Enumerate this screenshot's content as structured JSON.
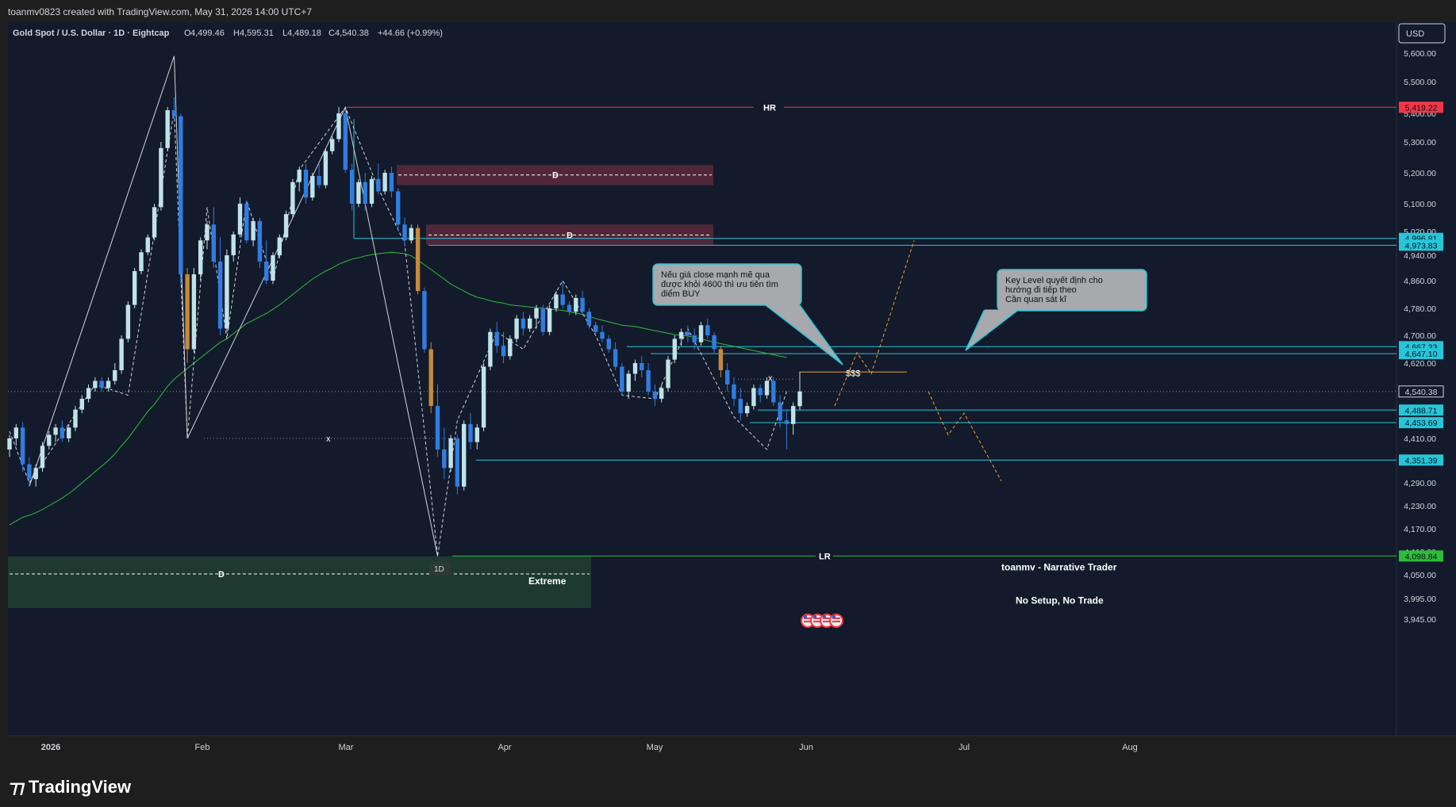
{
  "header": {
    "credit": "toanmv0823 created with TradingView.com, May 31, 2026 14:00 UTC+7"
  },
  "footer": {
    "brand": "TradingView"
  },
  "colors": {
    "bg": "#131a2b",
    "up": "#bfe3e8",
    "down": "#2f7de0",
    "highlight": "#c58a3b",
    "ma": "#2ebd3a",
    "hr": "#f23645",
    "level": "#26c6da",
    "orange": "#f0a030"
  },
  "chart_data": {
    "type": "candlestick",
    "symbol_line": {
      "symbol": "Gold Spot / U.S. Dollar · 1D · Eightcap",
      "o_label": "O",
      "o": "4,499.46",
      "h_label": "H",
      "h": "4,595.31",
      "l_label": "L",
      "l": "4,489.18",
      "c_label": "C",
      "c": "4,540.38",
      "change": "+44.66 (+0.99%)"
    },
    "currency": "USD",
    "ylim": [
      3920,
      5700
    ],
    "x_months": [
      "2026",
      "Feb",
      "Mar",
      "Apr",
      "May",
      "Jun",
      "Jul",
      "Aug"
    ],
    "y_ticks": [
      "5,600.00",
      "5,500.00",
      "5,400.00",
      "5,300.00",
      "5,200.00",
      "5,100.00",
      "5,020.00",
      "4,940.00",
      "4,860.00",
      "4,780.00",
      "4,700.00",
      "4,620.00",
      "4,540.00",
      "4,410.00",
      "4,290.00",
      "4,230.00",
      "4,170.00",
      "4,110.00",
      "4,050.00",
      "3,995.00",
      "3,945.00"
    ],
    "y_tick_values": [
      5600,
      5500,
      5400,
      5300,
      5200,
      5100,
      5020,
      4940,
      4860,
      4780,
      4700,
      4620,
      4540,
      4410,
      4290,
      4230,
      4170,
      4110,
      4050,
      3995,
      3945
    ],
    "ohlc_approx": [
      [
        4380,
        4420,
        4360,
        4410
      ],
      [
        4410,
        4450,
        4390,
        4440
      ],
      [
        4440,
        4455,
        4320,
        4340
      ],
      [
        4340,
        4360,
        4280,
        4300
      ],
      [
        4300,
        4340,
        4280,
        4330
      ],
      [
        4330,
        4400,
        4320,
        4390
      ],
      [
        4390,
        4430,
        4380,
        4420
      ],
      [
        4420,
        4450,
        4400,
        4440
      ],
      [
        4440,
        4460,
        4400,
        4410
      ],
      [
        4410,
        4450,
        4400,
        4440
      ],
      [
        4440,
        4500,
        4430,
        4490
      ],
      [
        4490,
        4530,
        4480,
        4520
      ],
      [
        4520,
        4560,
        4510,
        4550
      ],
      [
        4550,
        4580,
        4540,
        4570
      ],
      [
        4570,
        4580,
        4540,
        4550
      ],
      [
        4550,
        4580,
        4540,
        4570
      ],
      [
        4570,
        4620,
        4560,
        4600
      ],
      [
        4600,
        4700,
        4590,
        4690
      ],
      [
        4690,
        4800,
        4680,
        4790
      ],
      [
        4790,
        4900,
        4780,
        4890
      ],
      [
        4890,
        4960,
        4880,
        4950
      ],
      [
        4950,
        5010,
        4940,
        5000
      ],
      [
        5000,
        5100,
        4990,
        5090
      ],
      [
        5090,
        5300,
        5080,
        5280
      ],
      [
        5280,
        5420,
        5270,
        5410
      ],
      [
        5410,
        5450,
        5380,
        5390
      ],
      [
        5390,
        5400,
        4850,
        4880
      ],
      [
        4880,
        4900,
        4620,
        4660
      ],
      [
        4660,
        4900,
        4650,
        4880
      ],
      [
        4880,
        5000,
        4860,
        4990
      ],
      [
        4990,
        5050,
        4960,
        5040
      ],
      [
        5040,
        5090,
        4900,
        4920
      ],
      [
        4920,
        5000,
        4700,
        4720
      ],
      [
        4720,
        4960,
        4710,
        4940
      ],
      [
        4940,
        5020,
        4920,
        5010
      ],
      [
        5010,
        5120,
        5000,
        5100
      ],
      [
        5100,
        5110,
        4980,
        4990
      ],
      [
        4990,
        5060,
        4970,
        5050
      ],
      [
        5050,
        5060,
        4900,
        4920
      ],
      [
        4920,
        4990,
        4850,
        4860
      ],
      [
        4860,
        4950,
        4850,
        4940
      ],
      [
        4940,
        5010,
        4930,
        5000
      ],
      [
        5000,
        5080,
        4990,
        5070
      ],
      [
        5070,
        5180,
        5060,
        5170
      ],
      [
        5170,
        5220,
        5140,
        5210
      ],
      [
        5210,
        5230,
        5100,
        5120
      ],
      [
        5120,
        5200,
        5110,
        5190
      ],
      [
        5190,
        5230,
        5150,
        5160
      ],
      [
        5160,
        5280,
        5150,
        5270
      ],
      [
        5270,
        5320,
        5260,
        5310
      ],
      [
        5310,
        5420,
        5300,
        5400
      ],
      [
        5400,
        5410,
        5200,
        5210
      ],
      [
        5210,
        5230,
        5080,
        5100
      ],
      [
        5100,
        5180,
        5090,
        5170
      ],
      [
        5170,
        5200,
        5080,
        5100
      ],
      [
        5100,
        5190,
        5090,
        5180
      ],
      [
        5180,
        5230,
        5130,
        5140
      ],
      [
        5140,
        5210,
        5130,
        5200
      ],
      [
        5200,
        5220,
        5120,
        5140
      ],
      [
        5140,
        5150,
        5020,
        5040
      ],
      [
        5040,
        5060,
        4970,
        4990
      ],
      [
        4990,
        5040,
        4980,
        5030
      ],
      [
        5030,
        5040,
        4820,
        4830
      ],
      [
        4830,
        4840,
        4650,
        4660
      ],
      [
        4660,
        4680,
        4480,
        4500
      ],
      [
        4500,
        4560,
        4360,
        4380
      ],
      [
        4380,
        4440,
        4300,
        4330
      ],
      [
        4330,
        4420,
        4320,
        4410
      ],
      [
        4410,
        4420,
        4260,
        4280
      ],
      [
        4280,
        4460,
        4270,
        4450
      ],
      [
        4450,
        4480,
        4380,
        4400
      ],
      [
        4400,
        4450,
        4380,
        4440
      ],
      [
        4440,
        4620,
        4430,
        4610
      ],
      [
        4610,
        4720,
        4600,
        4710
      ],
      [
        4710,
        4740,
        4650,
        4670
      ],
      [
        4670,
        4710,
        4620,
        4640
      ],
      [
        4640,
        4700,
        4630,
        4690
      ],
      [
        4690,
        4760,
        4680,
        4750
      ],
      [
        4750,
        4770,
        4700,
        4720
      ],
      [
        4720,
        4760,
        4710,
        4750
      ],
      [
        4750,
        4790,
        4720,
        4780
      ],
      [
        4780,
        4790,
        4700,
        4710
      ],
      [
        4710,
        4790,
        4700,
        4780
      ],
      [
        4780,
        4830,
        4770,
        4820
      ],
      [
        4820,
        4860,
        4780,
        4790
      ],
      [
        4790,
        4800,
        4760,
        4770
      ],
      [
        4770,
        4820,
        4760,
        4810
      ],
      [
        4810,
        4830,
        4760,
        4770
      ],
      [
        4770,
        4780,
        4720,
        4730
      ],
      [
        4730,
        4740,
        4700,
        4710
      ],
      [
        4710,
        4730,
        4680,
        4690
      ],
      [
        4690,
        4700,
        4650,
        4660
      ],
      [
        4660,
        4680,
        4600,
        4610
      ],
      [
        4610,
        4620,
        4530,
        4540
      ],
      [
        4540,
        4600,
        4520,
        4590
      ],
      [
        4590,
        4630,
        4570,
        4620
      ],
      [
        4620,
        4640,
        4580,
        4600
      ],
      [
        4600,
        4620,
        4530,
        4540
      ],
      [
        4540,
        4560,
        4500,
        4520
      ],
      [
        4520,
        4560,
        4510,
        4550
      ],
      [
        4550,
        4640,
        4540,
        4630
      ],
      [
        4630,
        4700,
        4620,
        4690
      ],
      [
        4690,
        4720,
        4670,
        4710
      ],
      [
        4710,
        4730,
        4680,
        4700
      ],
      [
        4700,
        4720,
        4660,
        4680
      ],
      [
        4680,
        4740,
        4670,
        4730
      ],
      [
        4730,
        4750,
        4690,
        4700
      ],
      [
        4700,
        4710,
        4650,
        4660
      ],
      [
        4660,
        4670,
        4580,
        4600
      ],
      [
        4600,
        4620,
        4540,
        4560
      ],
      [
        4560,
        4580,
        4500,
        4520
      ],
      [
        4520,
        4550,
        4460,
        4480
      ],
      [
        4480,
        4510,
        4470,
        4500
      ],
      [
        4500,
        4560,
        4490,
        4550
      ],
      [
        4550,
        4560,
        4510,
        4530
      ],
      [
        4530,
        4580,
        4520,
        4570
      ],
      [
        4570,
        4580,
        4500,
        4510
      ],
      [
        4510,
        4530,
        4440,
        4460
      ],
      [
        4460,
        4490,
        4380,
        4450
      ],
      [
        4450,
        4510,
        4420,
        4500
      ],
      [
        4499.46,
        4595.31,
        4489.18,
        4540.38
      ]
    ],
    "ma_approx": [
      4180,
      4190,
      4200,
      4205,
      4212,
      4220,
      4230,
      4240,
      4250,
      4262,
      4275,
      4290,
      4305,
      4320,
      4335,
      4350,
      4368,
      4390,
      4410,
      4435,
      4460,
      4485,
      4505,
      4530,
      4555,
      4575,
      4590,
      4605,
      4620,
      4635,
      4650,
      4665,
      4680,
      4690,
      4705,
      4720,
      4735,
      4745,
      4755,
      4765,
      4778,
      4790,
      4805,
      4820,
      4835,
      4850,
      4865,
      4878,
      4890,
      4900,
      4912,
      4920,
      4928,
      4932,
      4938,
      4942,
      4945,
      4948,
      4950,
      4948,
      4945,
      4938,
      4925,
      4910,
      4895,
      4880,
      4865,
      4850,
      4840,
      4830,
      4820,
      4812,
      4808,
      4802,
      4798,
      4795,
      4790,
      4788,
      4786,
      4784,
      4782,
      4780,
      4778,
      4776,
      4774,
      4770,
      4766,
      4762,
      4756,
      4750,
      4745,
      4740,
      4735,
      4730,
      4728,
      4726,
      4722,
      4718,
      4714,
      4710,
      4706,
      4702,
      4700,
      4698,
      4694,
      4690,
      4685,
      4680,
      4676,
      4672,
      4668,
      4664,
      4660,
      4656,
      4652,
      4648,
      4644,
      4640,
      4636
    ],
    "levels": [
      {
        "label": "5,419.22",
        "value": 5419.22,
        "color": "#f23645"
      },
      {
        "label": "4,996.81",
        "value": 4996.81,
        "color": "#26c6da"
      },
      {
        "label": "4,973.83",
        "value": 4973.83,
        "color": "#26c6da"
      },
      {
        "label": "4,667.33",
        "value": 4667.33,
        "color": "#26c6da"
      },
      {
        "label": "4,647.10",
        "value": 4647.1,
        "color": "#26c6da"
      },
      {
        "label": "4,540.38",
        "value": 4540.38,
        "color": "#d1d4dc"
      },
      {
        "label": "4,488.71",
        "value": 4488.71,
        "color": "#26c6da"
      },
      {
        "label": "4,453.69",
        "value": 4453.69,
        "color": "#26c6da"
      },
      {
        "label": "4,351.39",
        "value": 4351.39,
        "color": "#26c6da"
      },
      {
        "label": "4,098.84",
        "value": 4098.84,
        "color": "#2ebd3a"
      }
    ],
    "annotations": {
      "hr": "HR",
      "lr": "LR",
      "d": "D",
      "x": "x",
      "tf": "1D",
      "extreme": "Extreme",
      "dollars": "$$$",
      "note1": [
        "Nếu giá close mạnh mẽ qua",
        "được khỏi 4600 thì ưu tiên tìm",
        "điểm BUY"
      ],
      "note2": [
        "Key Level quyết định cho",
        "hướng đi tiếp theo",
        "Cần quan sát kĩ"
      ],
      "sig1": "toanmv - Narrative Trader",
      "sig2": "No Setup, No Trade"
    }
  }
}
